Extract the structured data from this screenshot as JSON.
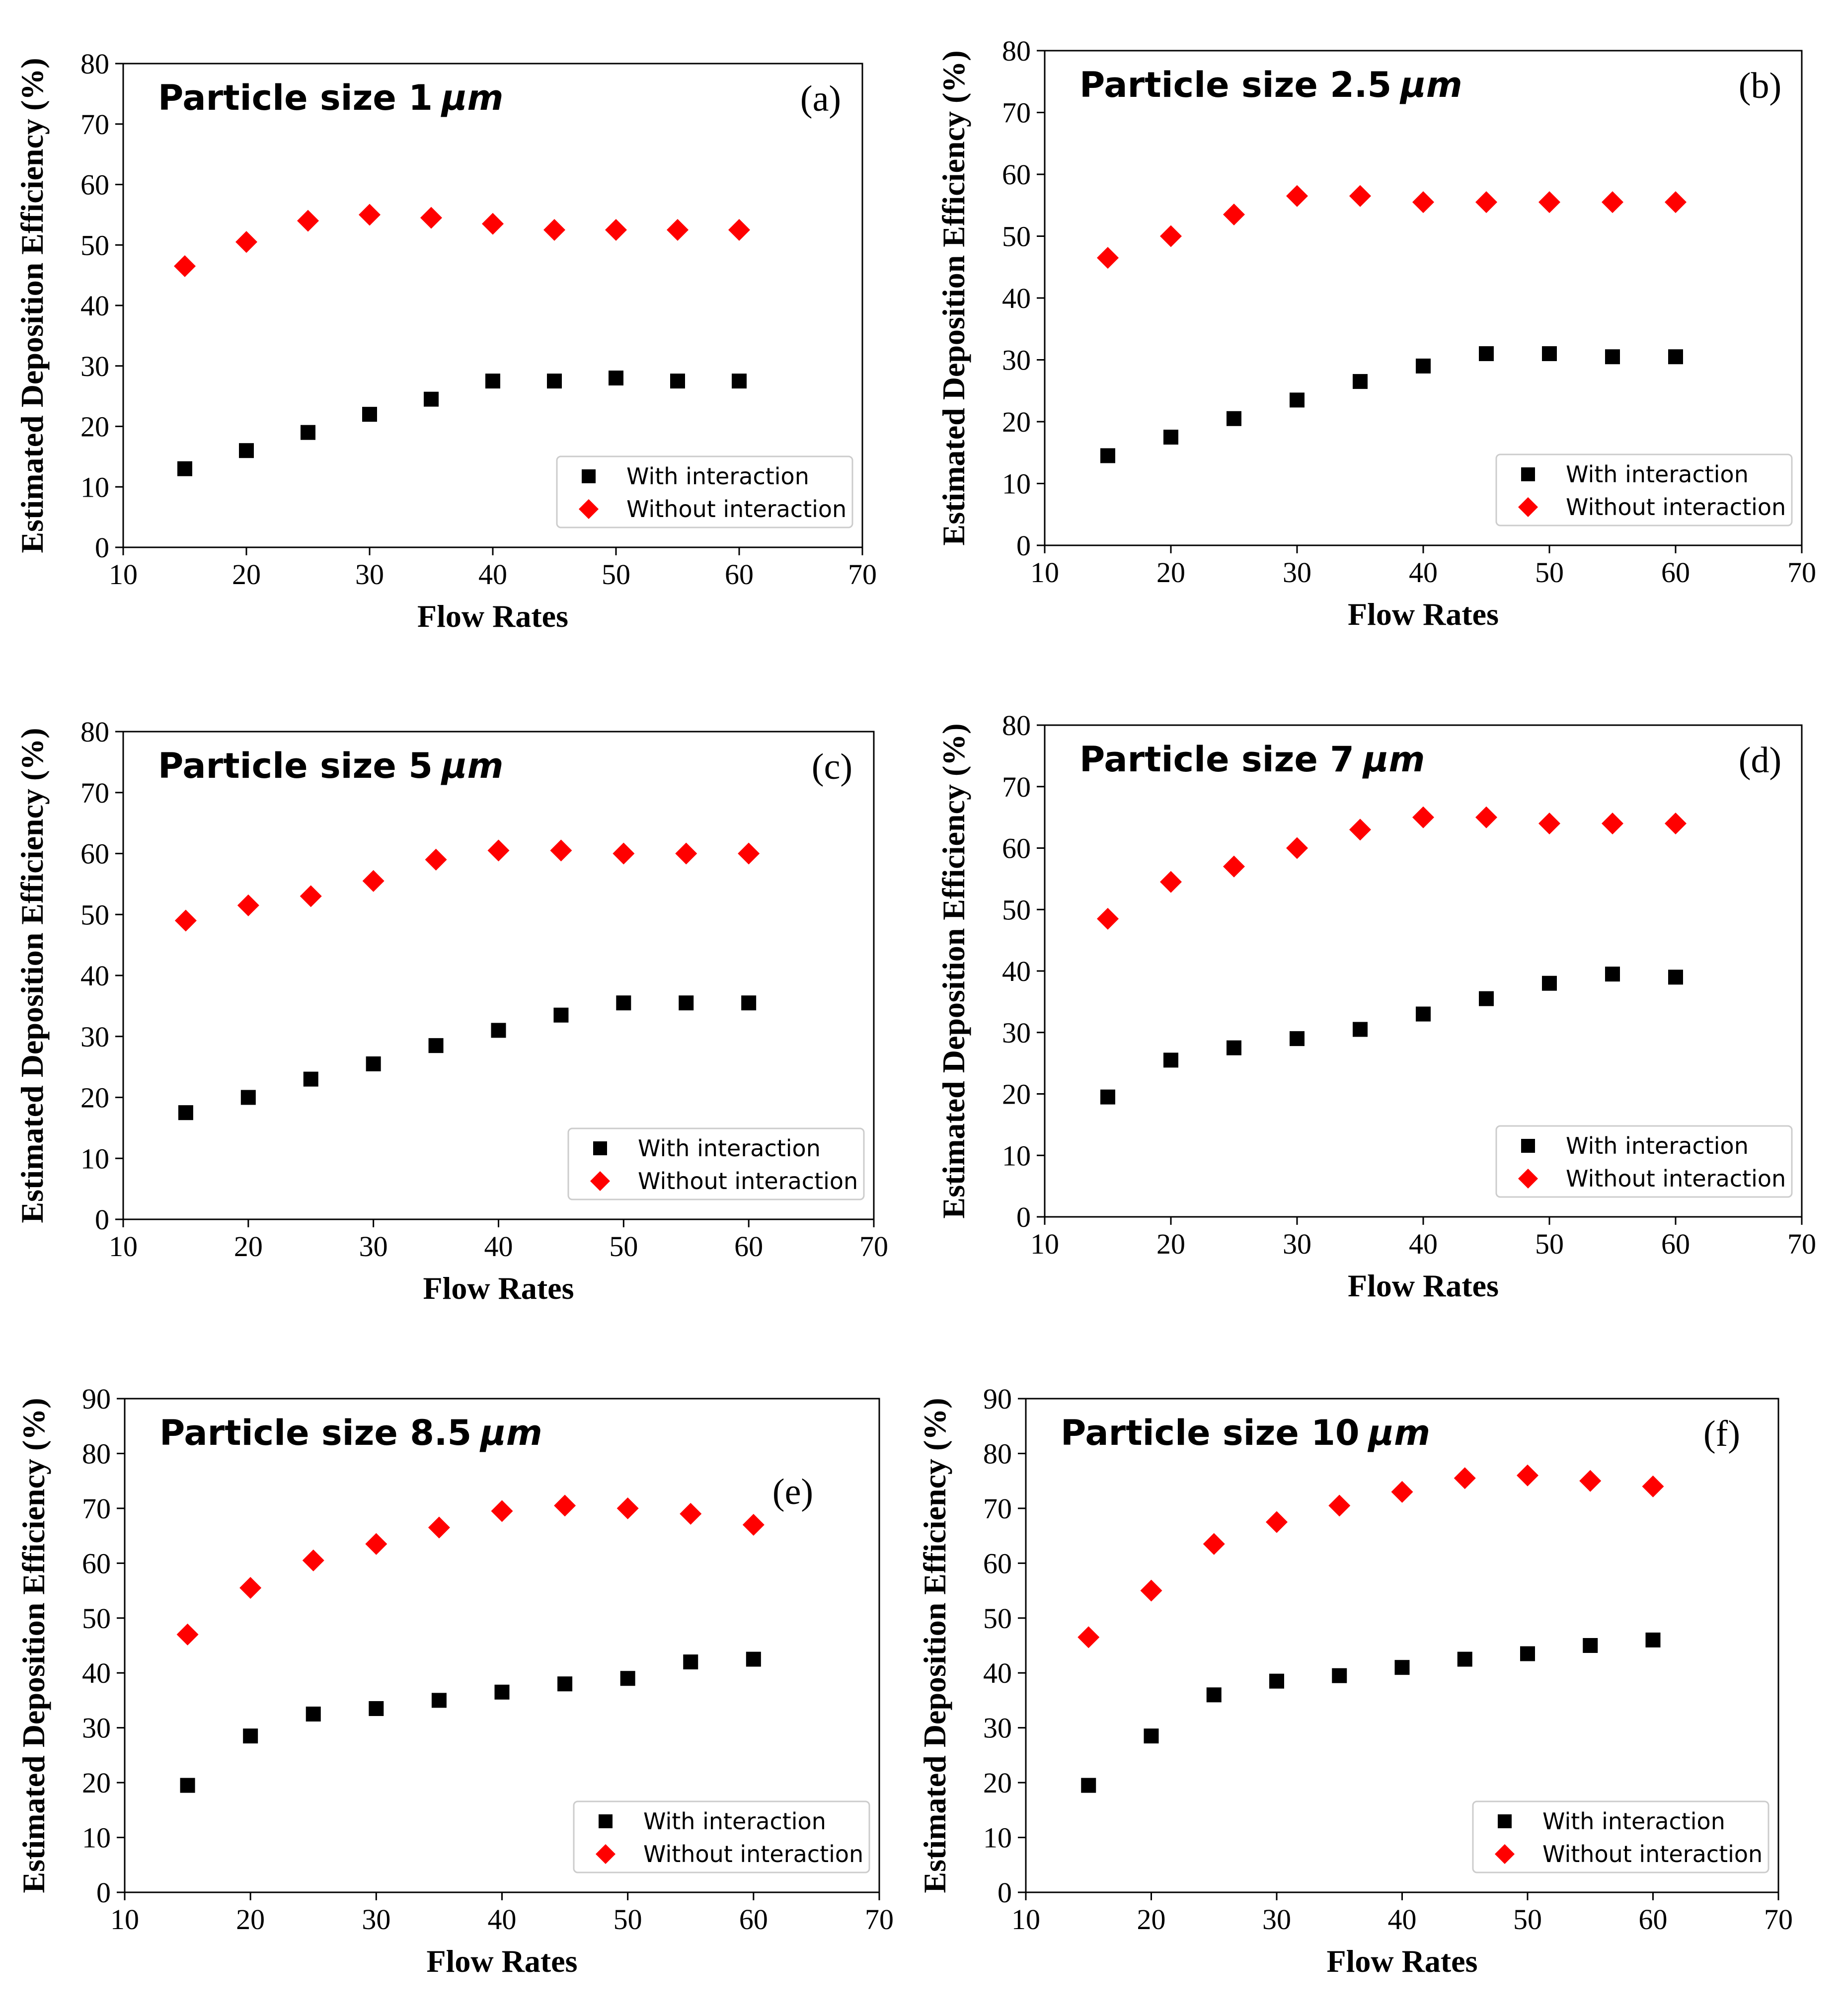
{
  "colors": {
    "with": "#000000",
    "without": "#ff0000"
  },
  "chart_data": [
    {
      "type": "scatter",
      "tag": "(a)",
      "title_prefix": "Particle size ",
      "size": "1",
      "unit": "μm",
      "xlabel": "Flow Rates",
      "ylabel": "Estimated Deposition Efficiency (%)",
      "xlim": [
        10,
        70
      ],
      "ylim": [
        0,
        80
      ],
      "xticks": [
        10,
        20,
        30,
        40,
        50,
        60,
        70
      ],
      "yticks": [
        0,
        10,
        20,
        30,
        40,
        50,
        60,
        70,
        80
      ],
      "legend": {
        "placement": "lower-right",
        "entries": [
          "With interaction",
          "Without interaction"
        ]
      },
      "x": [
        15,
        20,
        25,
        30,
        35,
        40,
        45,
        50,
        55,
        60
      ],
      "series": [
        {
          "name": "With interaction",
          "marker": "square",
          "values": [
            13.0,
            16.0,
            19.0,
            22.0,
            24.5,
            27.5,
            27.5,
            28.0,
            27.5,
            27.5
          ]
        },
        {
          "name": "Without interaction",
          "marker": "diamond",
          "values": [
            46.5,
            50.5,
            54.0,
            55.0,
            54.5,
            53.5,
            52.5,
            52.5,
            52.5,
            52.5
          ]
        }
      ]
    },
    {
      "type": "scatter",
      "tag": "(b)",
      "title_prefix": "Particle size ",
      "size": "2.5",
      "unit": "μm",
      "xlabel": "Flow Rates",
      "ylabel": "Estimated Deposition Efficiency (%)",
      "xlim": [
        10,
        70
      ],
      "ylim": [
        0,
        80
      ],
      "xticks": [
        10,
        20,
        30,
        40,
        50,
        60,
        70
      ],
      "yticks": [
        0,
        10,
        20,
        30,
        40,
        50,
        60,
        70,
        80
      ],
      "legend": {
        "placement": "lower-right",
        "entries": [
          "With interaction",
          "Without interaction"
        ]
      },
      "x": [
        15,
        20,
        25,
        30,
        35,
        40,
        45,
        50,
        55,
        60
      ],
      "series": [
        {
          "name": "With interaction",
          "marker": "square",
          "values": [
            14.5,
            17.5,
            20.5,
            23.5,
            26.5,
            29.0,
            31.0,
            31.0,
            30.5,
            30.5
          ]
        },
        {
          "name": "Without interaction",
          "marker": "diamond",
          "values": [
            46.5,
            50.0,
            53.5,
            56.5,
            56.5,
            55.5,
            55.5,
            55.5,
            55.5,
            55.5
          ]
        }
      ]
    },
    {
      "type": "scatter",
      "tag": "(c)",
      "title_prefix": "Particle size ",
      "size": "5",
      "unit": "μm",
      "xlabel": "Flow Rates",
      "ylabel": "Estimated Deposition Efficiency (%)",
      "xlim": [
        10,
        70
      ],
      "ylim": [
        0,
        80
      ],
      "xticks": [
        10,
        20,
        30,
        40,
        50,
        60,
        70
      ],
      "yticks": [
        0,
        10,
        20,
        30,
        40,
        50,
        60,
        70,
        80
      ],
      "legend": {
        "placement": "lower-right",
        "entries": [
          "With interaction",
          "Without interaction"
        ]
      },
      "x": [
        15,
        20,
        25,
        30,
        35,
        40,
        45,
        50,
        55,
        60
      ],
      "series": [
        {
          "name": "With interaction",
          "marker": "square",
          "values": [
            17.5,
            20.0,
            23.0,
            25.5,
            28.5,
            31.0,
            33.5,
            35.5,
            35.5,
            35.5
          ]
        },
        {
          "name": "Without interaction",
          "marker": "diamond",
          "values": [
            49.0,
            51.5,
            53.0,
            55.5,
            59.0,
            60.5,
            60.5,
            60.0,
            60.0,
            60.0
          ]
        }
      ]
    },
    {
      "type": "scatter",
      "tag": "(d)",
      "title_prefix": "Particle size ",
      "size": "7",
      "unit": "μm",
      "xlabel": "Flow Rates",
      "ylabel": "Estimated Deposition Efficiency (%)",
      "xlim": [
        10,
        70
      ],
      "ylim": [
        0,
        80
      ],
      "xticks": [
        10,
        20,
        30,
        40,
        50,
        60,
        70
      ],
      "yticks": [
        0,
        10,
        20,
        30,
        40,
        50,
        60,
        70,
        80
      ],
      "legend": {
        "placement": "lower-right",
        "entries": [
          "With interaction",
          "Without interaction"
        ]
      },
      "x": [
        15,
        20,
        25,
        30,
        35,
        40,
        45,
        50,
        55,
        60
      ],
      "series": [
        {
          "name": "With interaction",
          "marker": "square",
          "values": [
            19.5,
            25.5,
            27.5,
            29.0,
            30.5,
            33.0,
            35.5,
            38.0,
            39.5,
            39.0
          ]
        },
        {
          "name": "Without interaction",
          "marker": "diamond",
          "values": [
            48.5,
            54.5,
            57.0,
            60.0,
            63.0,
            65.0,
            65.0,
            64.0,
            64.0,
            64.0
          ]
        }
      ]
    },
    {
      "type": "scatter",
      "tag": "(e)",
      "title_prefix": "Particle size ",
      "size": "8.5",
      "unit": "μm",
      "xlabel": "Flow Rates",
      "ylabel": "Estimated Deposition Efficiency (%)",
      "xlim": [
        10,
        70
      ],
      "ylim": [
        0,
        90
      ],
      "xticks": [
        10,
        20,
        30,
        40,
        50,
        60,
        70
      ],
      "yticks": [
        0,
        10,
        20,
        30,
        40,
        50,
        60,
        70,
        80,
        90
      ],
      "legend": {
        "placement": "lower-right",
        "entries": [
          "With interaction",
          "Without interaction"
        ]
      },
      "x": [
        15,
        20,
        25,
        30,
        35,
        40,
        45,
        50,
        55,
        60
      ],
      "series": [
        {
          "name": "With interaction",
          "marker": "square",
          "values": [
            19.5,
            28.5,
            32.5,
            33.5,
            35.0,
            36.5,
            38.0,
            39.0,
            42.0,
            42.5
          ]
        },
        {
          "name": "Without interaction",
          "marker": "diamond",
          "values": [
            47.0,
            55.5,
            60.5,
            63.5,
            66.5,
            69.5,
            70.5,
            70.0,
            69.0,
            67.0
          ]
        }
      ]
    },
    {
      "type": "scatter",
      "tag": "(f)",
      "title_prefix": "Particle size ",
      "size": "10",
      "unit": "μm",
      "xlabel": "Flow Rates",
      "ylabel": "Estimated Deposition Efficiency (%)",
      "xlim": [
        10,
        70
      ],
      "ylim": [
        0,
        90
      ],
      "xticks": [
        10,
        20,
        30,
        40,
        50,
        60,
        70
      ],
      "yticks": [
        0,
        10,
        20,
        30,
        40,
        50,
        60,
        70,
        80,
        90
      ],
      "legend": {
        "placement": "lower-right",
        "entries": [
          "With interaction",
          "Without interaction"
        ]
      },
      "x": [
        15,
        20,
        25,
        30,
        35,
        40,
        45,
        50,
        55,
        60
      ],
      "series": [
        {
          "name": "With interaction",
          "marker": "square",
          "values": [
            19.5,
            28.5,
            36.0,
            38.5,
            39.5,
            41.0,
            42.5,
            43.5,
            45.0,
            46.0
          ]
        },
        {
          "name": "Without interaction",
          "marker": "diamond",
          "values": [
            46.5,
            55.0,
            63.5,
            67.5,
            70.5,
            73.0,
            75.5,
            76.0,
            75.0,
            74.0
          ]
        }
      ]
    }
  ]
}
